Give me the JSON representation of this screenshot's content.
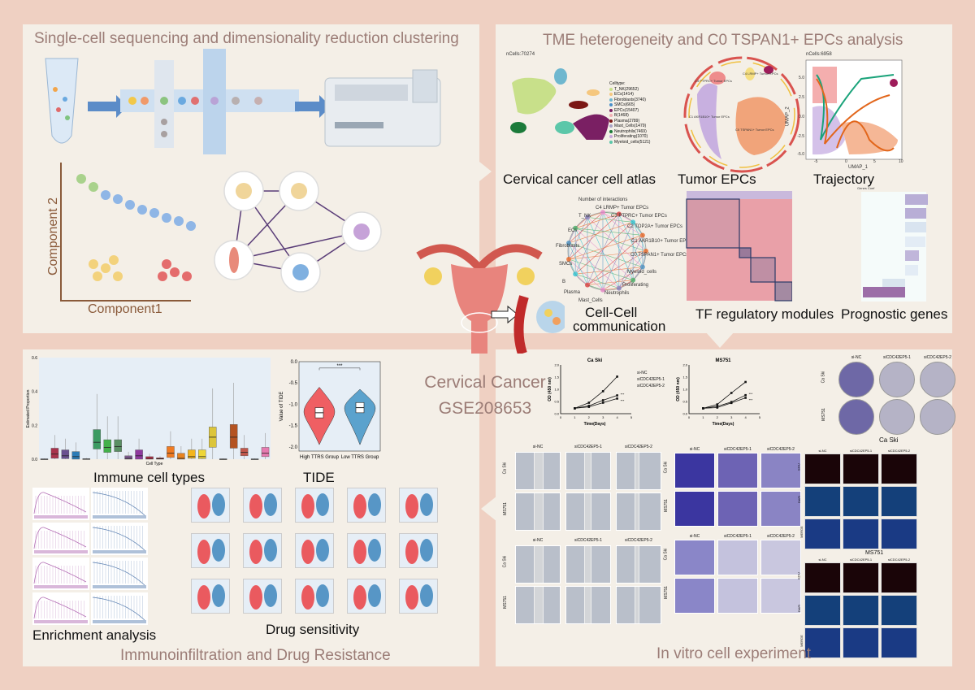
{
  "panels": {
    "top_left": {
      "title": "Single-cell sequencing and dimensionality reduction clustering",
      "xlabel": "Component1",
      "ylabel": "Component 2"
    },
    "top_right": {
      "title": "TME heterogeneity and C0 TSPAN1+ EPCs analysis",
      "captions": {
        "atlas": "Cervical cancer cell atlas",
        "tumor": "Tumor EPCs",
        "trajectory": "Trajectory",
        "cellcell_1": "Cell-Cell",
        "cellcell_2": "communication",
        "tf": "TF regulatory modules",
        "prognostic": "Prognostic genes"
      },
      "atlas": {
        "ncells": "nCells:70274",
        "legend_title": "Celltype:",
        "legend": [
          {
            "label": "T_NK(29652)",
            "color": "#c8e08a"
          },
          {
            "label": "ECs(1414)",
            "color": "#f5c77e"
          },
          {
            "label": "Fibroblasts(3740)",
            "color": "#6fb7cf"
          },
          {
            "label": "SMCs(665)",
            "color": "#4a8fc9"
          },
          {
            "label": "EPCs(15407)",
            "color": "#7a1f63"
          },
          {
            "label": "B(1468)",
            "color": "#f1b1b3"
          },
          {
            "label": "Plasma(2789)",
            "color": "#7b1714"
          },
          {
            "label": "Mast_Cells(1479)",
            "color": "#a9a3c6"
          },
          {
            "label": "Neutrophils(7469)",
            "color": "#1b7a3a"
          },
          {
            "label": "Proliferating(1070)",
            "color": "#c8a8dc"
          },
          {
            "label": "Myeloid_cells(5121)",
            "color": "#5cc7a9"
          }
        ],
        "axis": "UMAP_1"
      },
      "tumor_labels": [
        "C0 TSPAN1+ Tumor EPCs",
        "C1 AKR1B10+ Tumor EPCs",
        "C3 PTPRC+ Tumor EPCs",
        "C4 LRMP+ Tumor EPCs",
        "C2 TOP2A+ Tumor EPCs"
      ],
      "trajectory": {
        "ncells": "nCells:6958",
        "xlabel": "UMAP_1",
        "ylabel": "UMAP_2",
        "xticks": [
          "-5",
          "0",
          "5",
          "10"
        ],
        "yticks": [
          "5.0",
          "2.5",
          "0.0",
          "-2.5",
          "-5.0"
        ]
      },
      "network": {
        "title": "Number of interactions",
        "nodes": [
          "T_NK",
          "C4 LRMP+ Tumor EPCs",
          "C3 PTPRC+ Tumor EPCs",
          "C2 TOP2A+ Tumor EPCs",
          "C1 AKR1B10+ Tumor EPCs",
          "C0 TSPAN1+ Tumor EPCs",
          "Myeloid_cells",
          "Proliferating",
          "Neutrophils",
          "Mast_Cells",
          "Plasma",
          "B",
          "SMCs",
          "Fibroblasts",
          "ECs"
        ]
      },
      "prognostic": {
        "title": "Genes Coef"
      }
    },
    "center": {
      "line1": "Cervical Cancer",
      "line2": "GSE208653"
    },
    "bottom_left": {
      "title": "Immunoinfiltration and Drug Resistance",
      "captions": {
        "immune": "Immune cell types",
        "tide": "TIDE",
        "enrichment": "Enrichment analysis",
        "drug": "Drug sensitivity"
      },
      "immune": {
        "ylabel": "Estimated Proportion",
        "xlabel": "Cell Type",
        "yticks": [
          "0.6",
          "0.4",
          "0.2",
          "0.0"
        ],
        "medians": [
          0.0,
          0.03,
          0.02,
          0.015,
          0.0,
          0.1,
          0.07,
          0.075,
          0.005,
          0.02,
          0.005,
          0.003,
          0.035,
          0.005,
          0.015,
          0.015,
          0.13,
          0.0,
          0.13,
          0.04,
          0.0,
          0.035
        ],
        "q1": [
          0,
          0.005,
          0.003,
          0.0,
          0,
          0.06,
          0.04,
          0.045,
          0,
          0,
          0,
          0,
          0.01,
          0,
          0.005,
          0.003,
          0.07,
          0,
          0.065,
          0.02,
          0,
          0.015
        ],
        "q3": [
          0.002,
          0.065,
          0.055,
          0.045,
          0.003,
          0.175,
          0.115,
          0.115,
          0.02,
          0.055,
          0.015,
          0.008,
          0.075,
          0.035,
          0.055,
          0.055,
          0.19,
          0.002,
          0.205,
          0.065,
          0.002,
          0.07
        ],
        "colors": [
          "#666666",
          "#a8324c",
          "#6a5190",
          "#2c7bb6",
          "#777777",
          "#3c9b62",
          "#43b04a",
          "#5a8f63",
          "#7d5a8f",
          "#8e3a9e",
          "#c0304a",
          "#b94040",
          "#f07b22",
          "#e8831e",
          "#f3b51d",
          "#eed637",
          "#dcc53a",
          "#555555",
          "#b45321",
          "#c2584b",
          "#777777",
          "#e67bb0"
        ]
      },
      "tide": {
        "ylabel": "Value of TIDE",
        "groups": [
          "High TTRS Group",
          "Low TTRS Group"
        ],
        "yticks": [
          "0.0",
          "-0.5",
          "-1.0",
          "-1.5",
          "-2.0"
        ],
        "significance": "***",
        "medians": [
          -1.2,
          -1.08
        ],
        "colors": [
          "#ef5f63",
          "#5ba2cd"
        ]
      }
    },
    "bottom_right": {
      "title": "In vitro cell experiment",
      "growth": {
        "xlabel": "Time(Days)",
        "ylabel": "OD (450 nm)",
        "yticks": [
          "0.0",
          "0.5",
          "1.0",
          "1.5",
          "2.0"
        ],
        "xticks": [
          "0",
          "1",
          "2",
          "3",
          "4",
          "5"
        ],
        "legend": [
          "si-NC",
          "siCDC42EP5-1",
          "siCDC42EP5-2"
        ],
        "significance": "***",
        "charts": [
          {
            "title": "Ca Ski",
            "x": [
              1,
              2,
              3,
              4
            ],
            "series": [
              [
                0.22,
                0.45,
                0.92,
                1.52
              ],
              [
                0.22,
                0.32,
                0.55,
                0.75
              ],
              [
                0.22,
                0.28,
                0.45,
                0.62
              ]
            ]
          },
          {
            "title": "MS751",
            "x": [
              1,
              2,
              3,
              4
            ],
            "series": [
              [
                0.22,
                0.38,
                0.85,
                1.3
              ],
              [
                0.22,
                0.3,
                0.48,
                0.76
              ],
              [
                0.22,
                0.25,
                0.44,
                0.65
              ]
            ]
          }
        ]
      },
      "conditions": [
        "si-NC",
        "siCDC42EP5-1",
        "siCDC42EP5-2"
      ],
      "cell_lines": [
        "Ca Ski",
        "MS751"
      ],
      "colony_caption": "Ca Ski",
      "edu_stains": [
        "EDU",
        "DAPI",
        "MERGE"
      ],
      "edu_second": "MS751"
    }
  }
}
